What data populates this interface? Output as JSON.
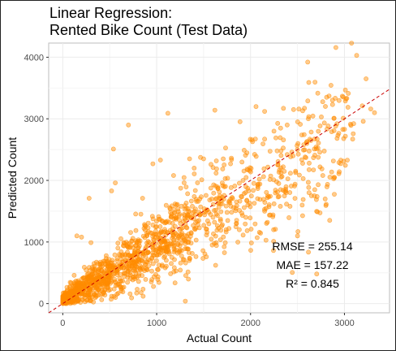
{
  "chart_data": {
    "type": "scatter",
    "title_line1": "Linear Regression:",
    "title_line2": "Rented Bike Count (Test Data)",
    "xlabel": "Actual Count",
    "ylabel": "Predicted Count",
    "xlim": [
      -150,
      3480
    ],
    "ylim": [
      -150,
      4230
    ],
    "x_ticks": [
      0,
      1000,
      2000,
      3000
    ],
    "y_ticks": [
      0,
      1000,
      2000,
      3000,
      4000
    ],
    "x_tick_labels": [
      "0",
      "1000",
      "2000",
      "3000"
    ],
    "y_tick_labels": [
      "0",
      "1000",
      "2000",
      "3000",
      "4000"
    ],
    "reference_line": "y = x",
    "point_color": "#ff8c00",
    "reference_line_color": "#cc0000",
    "metrics": {
      "rmse": "RMSE = 255.14",
      "mae": "MAE = 157.22",
      "r2": "R² = 0.845"
    },
    "points": [
      [
        3130,
        4030
      ],
      [
        3230,
        3650
      ],
      [
        2620,
        3590
      ],
      [
        2810,
        3350
      ],
      [
        3010,
        3290
      ],
      [
        2350,
        3170
      ],
      [
        3280,
        3160
      ],
      [
        3190,
        3210
      ],
      [
        2890,
        3010
      ],
      [
        2150,
        3120
      ],
      [
        1620,
        3140
      ],
      [
        2920,
        2920
      ],
      [
        3200,
        2960
      ],
      [
        3320,
        3100
      ],
      [
        1120,
        3090
      ],
      [
        700,
        2900
      ],
      [
        540,
        2510
      ],
      [
        2500,
        2500
      ],
      [
        2600,
        2600
      ],
      [
        2440,
        2460
      ],
      [
        2150,
        2670
      ],
      [
        2270,
        2690
      ],
      [
        2590,
        2370
      ],
      [
        3000,
        2830
      ],
      [
        2930,
        2730
      ],
      [
        2390,
        2420
      ],
      [
        2680,
        2510
      ],
      [
        2290,
        2250
      ],
      [
        280,
        1710
      ],
      [
        520,
        1830
      ],
      [
        560,
        1960
      ],
      [
        1040,
        2330
      ],
      [
        960,
        2270
      ],
      [
        1500,
        2350
      ],
      [
        1400,
        2200
      ],
      [
        1350,
        2350
      ],
      [
        1180,
        2080
      ],
      [
        1600,
        2210
      ],
      [
        850,
        1710
      ],
      [
        150,
        1100
      ],
      [
        200,
        1080
      ],
      [
        300,
        990
      ],
      [
        2060,
        2390
      ],
      [
        1920,
        2000
      ],
      [
        1730,
        2030
      ],
      [
        1980,
        1830
      ],
      [
        2100,
        1940
      ],
      [
        2480,
        2150
      ],
      [
        2560,
        2030
      ],
      [
        2720,
        1930
      ],
      [
        2380,
        1800
      ],
      [
        2300,
        1950
      ],
      [
        2420,
        1580
      ],
      [
        2240,
        1440
      ],
      [
        2560,
        1690
      ],
      [
        2680,
        1750
      ],
      [
        2500,
        1100
      ],
      [
        2070,
        1070
      ],
      [
        1880,
        1200
      ],
      [
        2320,
        1850
      ],
      [
        2180,
        1720
      ],
      [
        2040,
        1630
      ],
      [
        1900,
        1740
      ],
      [
        1820,
        1560
      ],
      [
        1750,
        1480
      ],
      [
        1680,
        1620
      ],
      [
        1600,
        1400
      ],
      [
        1540,
        1520
      ],
      [
        1450,
        1350
      ],
      [
        1700,
        1280
      ],
      [
        1950,
        1400
      ],
      [
        1850,
        1300
      ],
      [
        2150,
        1500
      ],
      [
        2250,
        1620
      ],
      [
        1460,
        1700
      ],
      [
        1380,
        1580
      ]
    ]
  }
}
